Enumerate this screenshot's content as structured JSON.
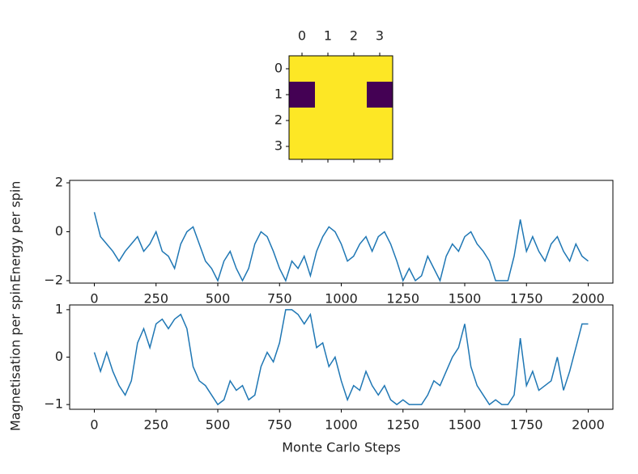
{
  "chart_data": [
    {
      "type": "heatmap",
      "xticks": [
        0,
        1,
        2,
        3
      ],
      "yticks": [
        0,
        1,
        2,
        3
      ],
      "values": [
        [
          1,
          1,
          1,
          1
        ],
        [
          -1,
          1,
          1,
          -1
        ],
        [
          1,
          1,
          1,
          1
        ],
        [
          1,
          1,
          1,
          1
        ]
      ],
      "colors": {
        "low": "#440154",
        "high": "#fde725"
      }
    },
    {
      "type": "line",
      "ylabel": "Energy per spin",
      "color": "#1f77b4",
      "x": [
        0,
        25,
        50,
        75,
        100,
        125,
        150,
        175,
        200,
        225,
        250,
        275,
        300,
        325,
        350,
        375,
        400,
        425,
        450,
        475,
        500,
        525,
        550,
        575,
        600,
        625,
        650,
        675,
        700,
        725,
        750,
        775,
        800,
        825,
        850,
        875,
        900,
        925,
        950,
        975,
        1000,
        1025,
        1050,
        1075,
        1100,
        1125,
        1150,
        1175,
        1200,
        1225,
        1250,
        1275,
        1300,
        1325,
        1350,
        1375,
        1400,
        1425,
        1450,
        1475,
        1500,
        1525,
        1550,
        1575,
        1600,
        1625,
        1650,
        1675,
        1700,
        1725,
        1750,
        1775,
        1800,
        1825,
        1850,
        1875,
        1900,
        1925,
        1950,
        1975,
        2000
      ],
      "values": [
        0.8,
        -0.2,
        -0.5,
        -0.8,
        -1.2,
        -0.8,
        -0.5,
        -0.2,
        -0.8,
        -0.5,
        0,
        -0.8,
        -1.0,
        -1.5,
        -0.5,
        0,
        0.2,
        -0.5,
        -1.2,
        -1.5,
        -2,
        -1.2,
        -0.8,
        -1.5,
        -2,
        -1.5,
        -0.5,
        0,
        -0.2,
        -0.8,
        -1.5,
        -2,
        -1.2,
        -1.5,
        -1.0,
        -1.8,
        -0.8,
        -0.2,
        0.2,
        0,
        -0.5,
        -1.2,
        -1.0,
        -0.5,
        -0.2,
        -0.8,
        -0.2,
        0,
        -0.5,
        -1.2,
        -2,
        -1.5,
        -2,
        -1.8,
        -1.0,
        -1.5,
        -2,
        -1.0,
        -0.5,
        -0.8,
        -0.2,
        0,
        -0.5,
        -0.8,
        -1.2,
        -2,
        -2,
        -2,
        -1.0,
        0.5,
        -0.8,
        -0.2,
        -0.8,
        -1.2,
        -0.5,
        -0.2,
        -0.8,
        -1.2,
        -0.5,
        -1.0,
        -1.2
      ],
      "xlim": [
        -100,
        2100
      ],
      "xticks": [
        0,
        250,
        500,
        750,
        1000,
        1250,
        1500,
        1750,
        2000
      ],
      "ylim": [
        -2.1,
        2.1
      ],
      "yticks": [
        {
          "value": -2,
          "label": "−2"
        },
        0,
        2
      ]
    },
    {
      "type": "line",
      "xlabel": "Monte Carlo Steps",
      "ylabel": "Magnetisation per spin",
      "color": "#1f77b4",
      "x": [
        0,
        25,
        50,
        75,
        100,
        125,
        150,
        175,
        200,
        225,
        250,
        275,
        300,
        325,
        350,
        375,
        400,
        425,
        450,
        475,
        500,
        525,
        550,
        575,
        600,
        625,
        650,
        675,
        700,
        725,
        750,
        775,
        800,
        825,
        850,
        875,
        900,
        925,
        950,
        975,
        1000,
        1025,
        1050,
        1075,
        1100,
        1125,
        1150,
        1175,
        1200,
        1225,
        1250,
        1275,
        1300,
        1325,
        1350,
        1375,
        1400,
        1425,
        1450,
        1475,
        1500,
        1525,
        1550,
        1575,
        1600,
        1625,
        1650,
        1675,
        1700,
        1725,
        1750,
        1775,
        1800,
        1825,
        1850,
        1875,
        1900,
        1925,
        1950,
        1975,
        2000
      ],
      "values": [
        0.1,
        -0.3,
        0.1,
        -0.3,
        -0.6,
        -0.8,
        -0.5,
        0.3,
        0.6,
        0.2,
        0.7,
        0.8,
        0.6,
        0.8,
        0.9,
        0.6,
        -0.2,
        -0.5,
        -0.6,
        -0.8,
        -1.0,
        -0.9,
        -0.5,
        -0.7,
        -0.6,
        -0.9,
        -0.8,
        -0.2,
        0.1,
        -0.1,
        0.3,
        1.0,
        1.0,
        0.9,
        0.7,
        0.9,
        0.2,
        0.3,
        -0.2,
        0,
        -0.5,
        -0.9,
        -0.6,
        -0.7,
        -0.3,
        -0.6,
        -0.8,
        -0.6,
        -0.9,
        -1.0,
        -0.9,
        -1.0,
        -1.0,
        -1.0,
        -0.8,
        -0.5,
        -0.6,
        -0.3,
        0,
        0.2,
        0.7,
        -0.2,
        -0.6,
        -0.8,
        -1.0,
        -0.9,
        -1.0,
        -1.0,
        -0.8,
        0.4,
        -0.6,
        -0.3,
        -0.7,
        -0.6,
        -0.5,
        0,
        -0.7,
        -0.3,
        0.2,
        0.7,
        0.7
      ],
      "xlim": [
        -100,
        2100
      ],
      "xticks": [
        0,
        250,
        500,
        750,
        1000,
        1250,
        1500,
        1750,
        2000
      ],
      "ylim": [
        -1.1,
        1.1
      ],
      "yticks": [
        {
          "value": -1,
          "label": "−1"
        },
        0,
        1
      ]
    }
  ]
}
